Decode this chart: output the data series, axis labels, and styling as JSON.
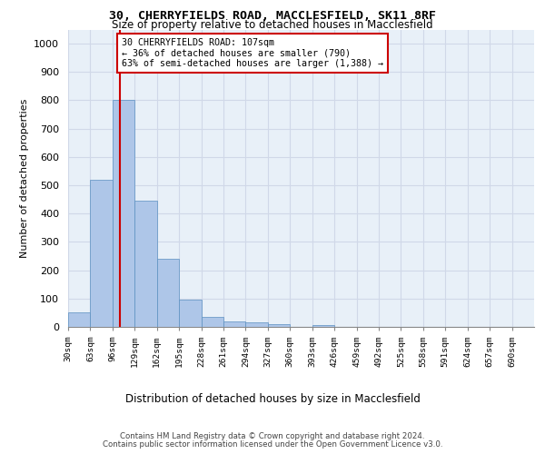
{
  "title1": "30, CHERRYFIELDS ROAD, MACCLESFIELD, SK11 8RF",
  "title2": "Size of property relative to detached houses in Macclesfield",
  "xlabel": "Distribution of detached houses by size in Macclesfield",
  "ylabel": "Number of detached properties",
  "bin_labels": [
    "30sqm",
    "63sqm",
    "96sqm",
    "129sqm",
    "162sqm",
    "195sqm",
    "228sqm",
    "261sqm",
    "294sqm",
    "327sqm",
    "360sqm",
    "393sqm",
    "426sqm",
    "459sqm",
    "492sqm",
    "525sqm",
    "558sqm",
    "591sqm",
    "624sqm",
    "657sqm",
    "690sqm"
  ],
  "bin_edges": [
    30,
    63,
    96,
    129,
    162,
    195,
    228,
    261,
    294,
    327,
    360,
    393,
    426,
    459,
    492,
    525,
    558,
    591,
    624,
    657,
    690
  ],
  "bar_values": [
    50,
    520,
    800,
    445,
    240,
    97,
    35,
    20,
    15,
    10,
    0,
    8,
    0,
    0,
    0,
    0,
    0,
    0,
    0,
    0
  ],
  "bar_color": "#aec6e8",
  "bar_edgecolor": "#5a8fc0",
  "property_sqm": 107,
  "red_line_color": "#cc0000",
  "annotation_line1": "30 CHERRYFIELDS ROAD: 107sqm",
  "annotation_line2": "← 36% of detached houses are smaller (790)",
  "annotation_line3": "63% of semi-detached houses are larger (1,388) →",
  "annotation_box_edgecolor": "#cc0000",
  "annotation_box_facecolor": "#ffffff",
  "ylim": [
    0,
    1050
  ],
  "yticks": [
    0,
    100,
    200,
    300,
    400,
    500,
    600,
    700,
    800,
    900,
    1000
  ],
  "grid_color": "#d0d8e8",
  "bg_color": "#e8f0f8",
  "footer1": "Contains HM Land Registry data © Crown copyright and database right 2024.",
  "footer2": "Contains public sector information licensed under the Open Government Licence v3.0."
}
